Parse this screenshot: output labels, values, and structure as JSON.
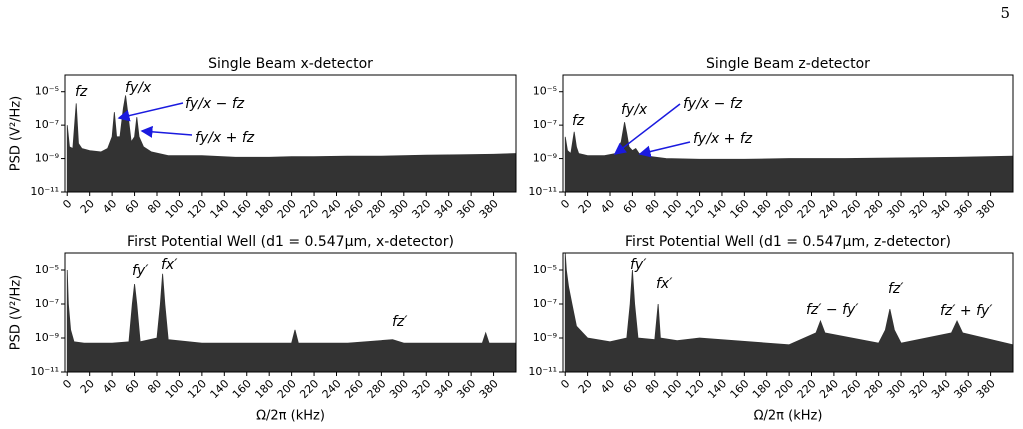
{
  "page_number": "5",
  "chart_data": [
    {
      "type": "area",
      "title": "Single Beam x-detector",
      "ylabel": "PSD (V²/Hz)",
      "color": "#333333",
      "log_y": true,
      "xlim": [
        -2,
        400
      ],
      "ylim": [
        1e-11,
        0.0001
      ],
      "xticks": [
        0,
        20,
        40,
        60,
        80,
        100,
        120,
        140,
        160,
        180,
        200,
        220,
        240,
        260,
        280,
        300,
        320,
        340,
        360,
        380
      ],
      "yticks": [
        {
          "value": 1e-05,
          "label": "10⁻⁵"
        },
        {
          "value": 1e-07,
          "label": "10⁻⁷"
        },
        {
          "value": 1e-09,
          "label": "10⁻⁹"
        },
        {
          "value": 1e-11,
          "label": "10⁻¹¹"
        }
      ],
      "annotations": [
        "fz",
        "fy/x",
        "fy/x − fz",
        "fy/x + fz"
      ],
      "x": [
        0,
        2,
        5,
        8,
        10,
        13,
        20,
        30,
        36,
        40,
        42,
        44,
        47,
        50,
        52,
        54,
        57,
        60,
        62,
        64,
        68,
        75,
        90,
        120,
        150,
        180,
        200,
        220,
        250,
        280,
        300,
        320,
        350,
        380,
        400
      ],
      "values": [
        1e-07,
        5e-09,
        4e-09,
        2e-06,
        8e-09,
        4e-09,
        3e-09,
        2.5e-09,
        4e-09,
        2e-08,
        6e-07,
        2e-08,
        2e-08,
        1e-06,
        6e-06,
        5e-07,
        1e-08,
        2e-08,
        3e-07,
        2e-08,
        5e-09,
        2.5e-09,
        1.5e-09,
        1.5e-09,
        1.2e-09,
        1.2e-09,
        1.3e-09,
        1.3e-09,
        1.4e-09,
        1.4e-09,
        1.5e-09,
        1.6e-09,
        1.7e-09,
        1.8e-09,
        2e-09
      ]
    },
    {
      "type": "area",
      "title": "Single Beam z-detector",
      "color": "#333333",
      "log_y": true,
      "xlim": [
        -2,
        400
      ],
      "ylim": [
        1e-11,
        0.0001
      ],
      "xticks": [
        0,
        20,
        40,
        60,
        80,
        100,
        120,
        140,
        160,
        180,
        200,
        220,
        240,
        260,
        280,
        300,
        320,
        340,
        360,
        380
      ],
      "yticks": [
        {
          "value": 1e-05,
          "label": "10⁻⁵"
        },
        {
          "value": 1e-07,
          "label": "10⁻⁷"
        },
        {
          "value": 1e-09,
          "label": "10⁻⁹"
        },
        {
          "value": 1e-11,
          "label": "10⁻¹¹"
        }
      ],
      "annotations": [
        "fz",
        "fy/x",
        "fy/x − fz",
        "fy/x + fz"
      ],
      "x": [
        0,
        2,
        5,
        8,
        10,
        12,
        20,
        35,
        45,
        50,
        53,
        55,
        57,
        60,
        63,
        66,
        70,
        90,
        120,
        160,
        200,
        250,
        300,
        350,
        400
      ],
      "values": [
        2e-08,
        3e-09,
        2e-09,
        4e-08,
        5e-09,
        2e-09,
        1.5e-09,
        1.5e-09,
        2e-09,
        1e-08,
        1.5e-07,
        3e-08,
        5e-09,
        3e-09,
        4e-09,
        2e-09,
        1.5e-09,
        1e-09,
        9e-10,
        9e-10,
        1e-09,
        1e-09,
        1.1e-09,
        1.2e-09,
        1.4e-09
      ]
    },
    {
      "type": "area",
      "title": "First Potential Well (d1 = 0.547μm, x-detector)",
      "ylabel": "PSD (V²/Hz)",
      "xlabel": "Ω/2π (kHz)",
      "color": "#333333",
      "log_y": true,
      "xlim": [
        -2,
        400
      ],
      "ylim": [
        1e-11,
        0.0001
      ],
      "xticks": [
        0,
        20,
        40,
        60,
        80,
        100,
        120,
        140,
        160,
        180,
        200,
        220,
        240,
        260,
        280,
        300,
        320,
        340,
        360,
        380
      ],
      "yticks": [
        {
          "value": 1e-05,
          "label": "10⁻⁵"
        },
        {
          "value": 1e-07,
          "label": "10⁻⁷"
        },
        {
          "value": 1e-09,
          "label": "10⁻⁹"
        },
        {
          "value": 1e-11,
          "label": "10⁻¹¹"
        }
      ],
      "annotations": [
        "fy′",
        "fx′",
        "fz′"
      ],
      "x": [
        0,
        1,
        3,
        6,
        15,
        40,
        55,
        58,
        60,
        62,
        65,
        80,
        83,
        85,
        87,
        90,
        120,
        180,
        200,
        203,
        206,
        250,
        290,
        300,
        340,
        370,
        373,
        376,
        400
      ],
      "values": [
        1e-05,
        1e-07,
        3e-09,
        6e-10,
        5e-10,
        5e-10,
        6e-10,
        1e-07,
        1.5e-06,
        1e-07,
        6e-10,
        1e-09,
        1e-07,
        6e-06,
        1e-07,
        8e-10,
        5e-10,
        5e-10,
        5e-10,
        3e-09,
        5e-10,
        5e-10,
        8e-10,
        5e-10,
        5e-10,
        5e-10,
        2e-09,
        5e-10,
        5e-10
      ]
    },
    {
      "type": "area",
      "title": "First Potential Well (d1 = 0.547μm, z-detector)",
      "xlabel": "Ω/2π (kHz)",
      "color": "#333333",
      "log_y": true,
      "xlim": [
        -2,
        400
      ],
      "ylim": [
        1e-11,
        0.0001
      ],
      "xticks": [
        0,
        20,
        40,
        60,
        80,
        100,
        120,
        140,
        160,
        180,
        200,
        220,
        240,
        260,
        280,
        300,
        320,
        340,
        360,
        380
      ],
      "yticks": [
        {
          "value": 1e-05,
          "label": "10⁻⁵"
        },
        {
          "value": 1e-07,
          "label": "10⁻⁷"
        },
        {
          "value": 1e-09,
          "label": "10⁻⁹"
        },
        {
          "value": 1e-11,
          "label": "10⁻¹¹"
        }
      ],
      "annotations": [
        "fy′",
        "fx′",
        "fz′ − fy′",
        "fz′",
        "fz′ + fy′"
      ],
      "x": [
        0,
        1,
        3,
        6,
        10,
        20,
        40,
        55,
        58,
        60,
        62,
        65,
        80,
        83,
        85,
        100,
        120,
        200,
        224,
        228,
        232,
        280,
        286,
        290,
        294,
        300,
        345,
        350,
        355,
        400
      ],
      "values": [
        0.0001,
        1e-05,
        1e-06,
        1e-07,
        5e-09,
        1e-09,
        6e-10,
        1e-09,
        1e-07,
        1e-05,
        1e-07,
        1e-09,
        8e-10,
        1e-07,
        1e-09,
        7e-10,
        1e-09,
        4e-10,
        2e-09,
        1e-08,
        2e-09,
        5e-10,
        3e-09,
        5e-08,
        3e-09,
        5e-10,
        2e-09,
        1e-08,
        2e-09,
        4e-10
      ]
    }
  ]
}
